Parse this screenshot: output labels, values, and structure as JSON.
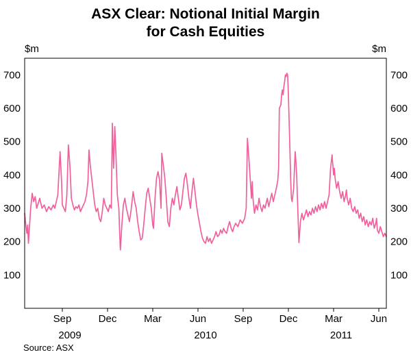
{
  "chart": {
    "title_line1": "ASX Clear: Notional Initial Margin",
    "title_line2": "for Cash Equities",
    "unit_left": "$m",
    "unit_right": "$m",
    "source": "Source: ASX"
  },
  "chart_data": {
    "type": "line",
    "title": "ASX Clear: Notional Initial Margin for Cash Equities",
    "ylabel": "$m",
    "ylim": [
      0,
      750
    ],
    "yticks": [
      100,
      200,
      300,
      400,
      500,
      600,
      700
    ],
    "grid": false,
    "legend_position": "none",
    "x_unit": "months since July 2009",
    "x_domain": [
      0,
      24
    ],
    "xticks": [
      {
        "pos": 2.5,
        "label": "Sep"
      },
      {
        "pos": 5.5,
        "label": "Dec"
      },
      {
        "pos": 8.5,
        "label": "Mar"
      },
      {
        "pos": 11.5,
        "label": "Jun"
      },
      {
        "pos": 14.5,
        "label": "Sep"
      },
      {
        "pos": 17.5,
        "label": "Dec"
      },
      {
        "pos": 20.5,
        "label": "Mar"
      },
      {
        "pos": 23.5,
        "label": "Jun"
      }
    ],
    "year_labels": [
      {
        "pos": 3,
        "label": "2009"
      },
      {
        "pos": 12,
        "label": "2010"
      },
      {
        "pos": 21,
        "label": "2011"
      }
    ],
    "line_color": "#f0609c",
    "frame_color": "#000000",
    "source": "Source: ASX",
    "series": [
      {
        "name": "Notional initial margin ($m)",
        "points": [
          [
            0.0,
            285
          ],
          [
            0.1,
            240
          ],
          [
            0.15,
            225
          ],
          [
            0.2,
            250
          ],
          [
            0.25,
            195
          ],
          [
            0.3,
            230
          ],
          [
            0.4,
            300
          ],
          [
            0.5,
            345
          ],
          [
            0.6,
            320
          ],
          [
            0.7,
            335
          ],
          [
            0.8,
            300
          ],
          [
            0.9,
            315
          ],
          [
            1.0,
            330
          ],
          [
            1.15,
            300
          ],
          [
            1.3,
            310
          ],
          [
            1.45,
            290
          ],
          [
            1.6,
            305
          ],
          [
            1.75,
            295
          ],
          [
            1.9,
            310
          ],
          [
            2.0,
            300
          ],
          [
            2.1,
            320
          ],
          [
            2.2,
            340
          ],
          [
            2.35,
            470
          ],
          [
            2.45,
            380
          ],
          [
            2.5,
            310
          ],
          [
            2.6,
            300
          ],
          [
            2.7,
            290
          ],
          [
            2.8,
            340
          ],
          [
            2.9,
            490
          ],
          [
            3.0,
            430
          ],
          [
            3.05,
            380
          ],
          [
            3.1,
            330
          ],
          [
            3.2,
            310
          ],
          [
            3.3,
            295
          ],
          [
            3.4,
            305
          ],
          [
            3.5,
            300
          ],
          [
            3.6,
            310
          ],
          [
            3.7,
            290
          ],
          [
            3.8,
            300
          ],
          [
            3.9,
            310
          ],
          [
            4.0,
            320
          ],
          [
            4.1,
            340
          ],
          [
            4.2,
            380
          ],
          [
            4.27,
            475
          ],
          [
            4.35,
            430
          ],
          [
            4.45,
            390
          ],
          [
            4.55,
            350
          ],
          [
            4.65,
            310
          ],
          [
            4.75,
            290
          ],
          [
            4.85,
            300
          ],
          [
            4.95,
            270
          ],
          [
            5.05,
            260
          ],
          [
            5.15,
            290
          ],
          [
            5.25,
            330
          ],
          [
            5.35,
            310
          ],
          [
            5.45,
            300
          ],
          [
            5.55,
            290
          ],
          [
            5.65,
            310
          ],
          [
            5.75,
            300
          ],
          [
            5.82,
            555
          ],
          [
            5.9,
            420
          ],
          [
            5.98,
            545
          ],
          [
            6.05,
            470
          ],
          [
            6.15,
            340
          ],
          [
            6.25,
            300
          ],
          [
            6.3,
            230
          ],
          [
            6.35,
            175
          ],
          [
            6.45,
            250
          ],
          [
            6.55,
            310
          ],
          [
            6.65,
            330
          ],
          [
            6.75,
            300
          ],
          [
            6.85,
            280
          ],
          [
            6.95,
            260
          ],
          [
            7.05,
            290
          ],
          [
            7.15,
            330
          ],
          [
            7.2,
            350
          ],
          [
            7.3,
            320
          ],
          [
            7.4,
            300
          ],
          [
            7.5,
            260
          ],
          [
            7.6,
            230
          ],
          [
            7.7,
            205
          ],
          [
            7.8,
            210
          ],
          [
            7.9,
            250
          ],
          [
            8.0,
            300
          ],
          [
            8.1,
            345
          ],
          [
            8.2,
            360
          ],
          [
            8.3,
            330
          ],
          [
            8.4,
            300
          ],
          [
            8.5,
            250
          ],
          [
            8.55,
            240
          ],
          [
            8.65,
            330
          ],
          [
            8.75,
            390
          ],
          [
            8.85,
            410
          ],
          [
            8.95,
            385
          ],
          [
            9.0,
            340
          ],
          [
            9.05,
            300
          ],
          [
            9.1,
            465
          ],
          [
            9.2,
            430
          ],
          [
            9.3,
            390
          ],
          [
            9.4,
            330
          ],
          [
            9.5,
            260
          ],
          [
            9.6,
            245
          ],
          [
            9.7,
            300
          ],
          [
            9.8,
            330
          ],
          [
            9.9,
            310
          ],
          [
            10.0,
            340
          ],
          [
            10.1,
            365
          ],
          [
            10.2,
            330
          ],
          [
            10.3,
            295
          ],
          [
            10.4,
            310
          ],
          [
            10.5,
            350
          ],
          [
            10.6,
            390
          ],
          [
            10.7,
            405
          ],
          [
            10.8,
            370
          ],
          [
            10.9,
            330
          ],
          [
            11.0,
            300
          ],
          [
            11.1,
            350
          ],
          [
            11.2,
            390
          ],
          [
            11.3,
            350
          ],
          [
            11.4,
            310
          ],
          [
            11.5,
            280
          ],
          [
            11.6,
            255
          ],
          [
            11.7,
            230
          ],
          [
            11.8,
            210
          ],
          [
            11.9,
            200
          ],
          [
            12.0,
            195
          ],
          [
            12.1,
            215
          ],
          [
            12.2,
            200
          ],
          [
            12.3,
            210
          ],
          [
            12.4,
            195
          ],
          [
            12.5,
            205
          ],
          [
            12.6,
            215
          ],
          [
            12.7,
            230
          ],
          [
            12.8,
            215
          ],
          [
            12.9,
            220
          ],
          [
            13.0,
            235
          ],
          [
            13.1,
            225
          ],
          [
            13.2,
            240
          ],
          [
            13.3,
            230
          ],
          [
            13.4,
            225
          ],
          [
            13.5,
            245
          ],
          [
            13.6,
            260
          ],
          [
            13.7,
            240
          ],
          [
            13.8,
            230
          ],
          [
            13.9,
            245
          ],
          [
            14.0,
            255
          ],
          [
            14.15,
            245
          ],
          [
            14.3,
            265
          ],
          [
            14.45,
            255
          ],
          [
            14.6,
            270
          ],
          [
            14.7,
            300
          ],
          [
            14.78,
            510
          ],
          [
            14.85,
            470
          ],
          [
            14.95,
            400
          ],
          [
            15.05,
            330
          ],
          [
            15.1,
            380
          ],
          [
            15.15,
            330
          ],
          [
            15.25,
            285
          ],
          [
            15.35,
            310
          ],
          [
            15.45,
            295
          ],
          [
            15.55,
            330
          ],
          [
            15.65,
            305
          ],
          [
            15.75,
            290
          ],
          [
            15.85,
            310
          ],
          [
            15.95,
            300
          ],
          [
            16.0,
            310
          ],
          [
            16.1,
            330
          ],
          [
            16.2,
            305
          ],
          [
            16.3,
            325
          ],
          [
            16.4,
            345
          ],
          [
            16.5,
            320
          ],
          [
            16.6,
            340
          ],
          [
            16.7,
            360
          ],
          [
            16.8,
            385
          ],
          [
            16.85,
            420
          ],
          [
            16.9,
            600
          ],
          [
            17.0,
            610
          ],
          [
            17.05,
            640
          ],
          [
            17.1,
            655
          ],
          [
            17.15,
            640
          ],
          [
            17.2,
            665
          ],
          [
            17.25,
            680
          ],
          [
            17.3,
            700
          ],
          [
            17.35,
            695
          ],
          [
            17.4,
            705
          ],
          [
            17.45,
            700
          ],
          [
            17.5,
            640
          ],
          [
            17.55,
            560
          ],
          [
            17.6,
            480
          ],
          [
            17.65,
            390
          ],
          [
            17.7,
            330
          ],
          [
            17.75,
            320
          ],
          [
            17.85,
            360
          ],
          [
            17.95,
            470
          ],
          [
            18.0,
            440
          ],
          [
            18.05,
            400
          ],
          [
            18.1,
            330
          ],
          [
            18.2,
            197
          ],
          [
            18.3,
            260
          ],
          [
            18.4,
            285
          ],
          [
            18.5,
            265
          ],
          [
            18.6,
            280
          ],
          [
            18.7,
            295
          ],
          [
            18.8,
            275
          ],
          [
            18.9,
            290
          ],
          [
            19.0,
            280
          ],
          [
            19.1,
            300
          ],
          [
            19.2,
            285
          ],
          [
            19.3,
            305
          ],
          [
            19.4,
            290
          ],
          [
            19.5,
            310
          ],
          [
            19.6,
            295
          ],
          [
            19.7,
            315
          ],
          [
            19.8,
            300
          ],
          [
            19.9,
            320
          ],
          [
            20.0,
            300
          ],
          [
            20.1,
            320
          ],
          [
            20.2,
            340
          ],
          [
            20.25,
            380
          ],
          [
            20.3,
            420
          ],
          [
            20.35,
            440
          ],
          [
            20.4,
            460
          ],
          [
            20.45,
            430
          ],
          [
            20.5,
            400
          ],
          [
            20.55,
            420
          ],
          [
            20.6,
            390
          ],
          [
            20.7,
            360
          ],
          [
            20.8,
            380
          ],
          [
            20.9,
            350
          ],
          [
            21.0,
            330
          ],
          [
            21.1,
            350
          ],
          [
            21.2,
            320
          ],
          [
            21.3,
            340
          ],
          [
            21.35,
            355
          ],
          [
            21.4,
            330
          ],
          [
            21.5,
            310
          ],
          [
            21.6,
            330
          ],
          [
            21.7,
            300
          ],
          [
            21.8,
            290
          ],
          [
            21.9,
            305
          ],
          [
            22.0,
            285
          ],
          [
            22.1,
            295
          ],
          [
            22.2,
            270
          ],
          [
            22.3,
            285
          ],
          [
            22.4,
            260
          ],
          [
            22.5,
            275
          ],
          [
            22.6,
            250
          ],
          [
            22.7,
            265
          ],
          [
            22.8,
            245
          ],
          [
            22.9,
            260
          ],
          [
            23.0,
            250
          ],
          [
            23.1,
            270
          ],
          [
            23.2,
            240
          ],
          [
            23.3,
            255
          ],
          [
            23.35,
            270
          ],
          [
            23.4,
            235
          ],
          [
            23.5,
            225
          ],
          [
            23.6,
            245
          ],
          [
            23.7,
            230
          ],
          [
            23.8,
            215
          ],
          [
            23.9,
            225
          ],
          [
            24.0,
            215
          ]
        ]
      }
    ]
  }
}
